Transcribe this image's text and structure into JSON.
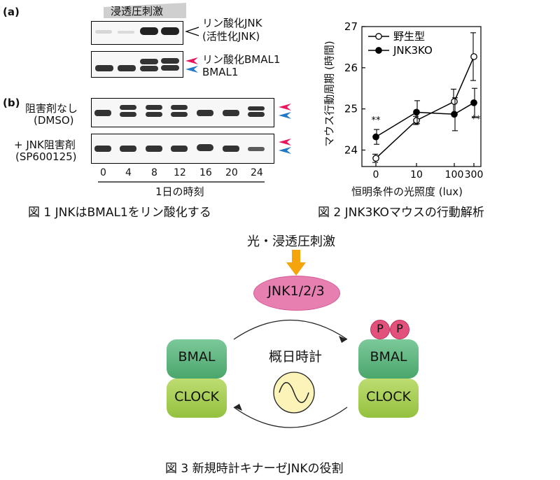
{
  "fig1": {
    "panel_a": "(a)",
    "panel_b": "(b)",
    "stim_label": "浸透圧刺激",
    "pjnk_line1": "リン酸化JNK",
    "pjnk_line2": "(活性化JNK)",
    "pbmal_label": "リン酸化BMAL1",
    "bmal_label": "BMAL1",
    "no_inhib_line1": "阻害剤なし",
    "no_inhib_line2": "(DMSO)",
    "inhib_line1": "+ JNK阻害剤",
    "inhib_line2": "(SP600125)",
    "time_ticks": [
      "0",
      "4",
      "8",
      "12",
      "16",
      "20",
      "24"
    ],
    "time_axis_label": "1日の時刻",
    "caption": "図 1  JNKはBMAL1をリン酸化する",
    "colors": {
      "phospho_arrow": "#e8175d",
      "total_arrow": "#1f78c8",
      "band": "#333333"
    }
  },
  "fig2": {
    "caption": "図 2  JNK3KOマウスの行動解析",
    "chart_data": {
      "type": "line",
      "categories": [
        "0",
        "10",
        "100",
        "300"
      ],
      "xlabel": "恒明条件の光照度 (lux)",
      "ylabel": "マウス行動周期 (時間)",
      "ylim": [
        23.6,
        27
      ],
      "yticks": [
        "24",
        "25",
        "26",
        "27"
      ],
      "series": [
        {
          "name": "野生型",
          "marker": "open-circle",
          "values": [
            23.8,
            24.72,
            25.18,
            26.27
          ],
          "err": [
            0.1,
            0.1,
            0.3,
            0.58
          ]
        },
        {
          "name": "JNK3KO",
          "marker": "filled-circle",
          "values": [
            24.32,
            24.92,
            24.87,
            25.15
          ],
          "err": [
            0.18,
            0.28,
            0.4,
            0.35
          ]
        }
      ],
      "annotations": [
        {
          "text": "**",
          "category": "0",
          "y": 24.65
        },
        {
          "text": "**",
          "category": "300",
          "y": 24.68
        }
      ],
      "legend_position": "top-left"
    }
  },
  "fig3": {
    "stimulus": "光・浸透圧刺激",
    "jnk": "JNK1/2/3",
    "bmal": "BMAL",
    "clock": "CLOCK",
    "phospho": "P",
    "center": "概日時計",
    "caption": "図 3  新規時計キナーゼJNKの役割",
    "colors": {
      "arrow": "#f5a40c",
      "jnk_fill": "#e77fb0",
      "bmal": "#5ab47a",
      "clock": "#a8cc52",
      "phospho": "#e2507c",
      "oscillator": "#fbf3b8"
    }
  }
}
